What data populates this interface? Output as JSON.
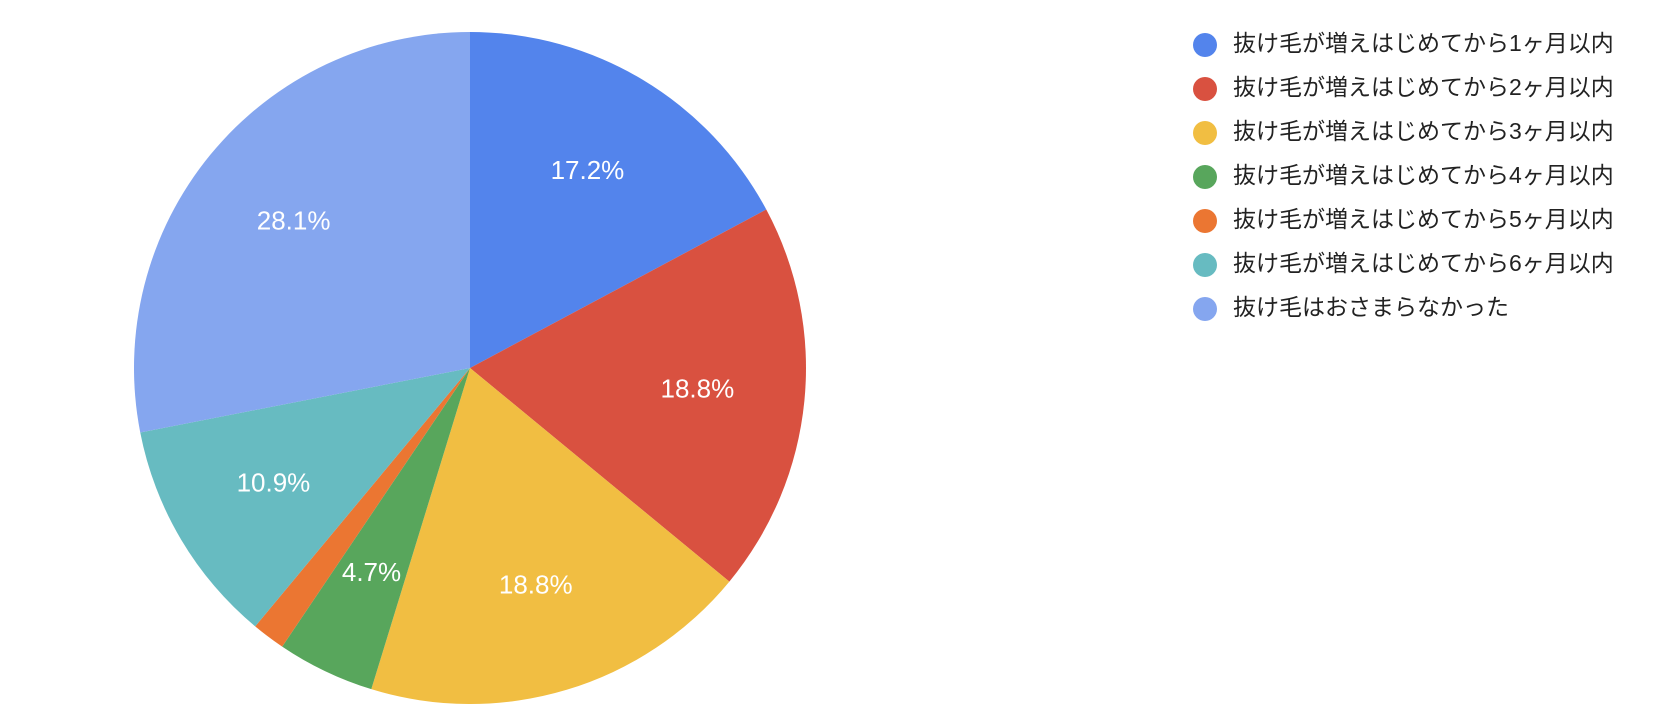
{
  "chart_data": {
    "type": "pie",
    "categories": [
      "抜け毛が増えはじめてから1ヶ月以内",
      "抜け毛が増えはじめてから2ヶ月以内",
      "抜け毛が増えはじめてから3ヶ月以内",
      "抜け毛が増えはじめてから4ヶ月以内",
      "抜け毛が増えはじめてから5ヶ月以内",
      "抜け毛が増えはじめてから6ヶ月以内",
      "抜け毛はおさまらなかった"
    ],
    "values": [
      17.2,
      18.8,
      18.8,
      4.7,
      1.6,
      10.9,
      28.1
    ],
    "value_labels": [
      "17.2%",
      "18.8%",
      "18.8%",
      "4.7%",
      null,
      "10.9%",
      "28.1%"
    ],
    "colors": [
      "#5384ec",
      "#d95140",
      "#f1be42",
      "#58a65c",
      "#eb7632",
      "#67bbc1",
      "#85a6ef"
    ],
    "legend": "right"
  }
}
